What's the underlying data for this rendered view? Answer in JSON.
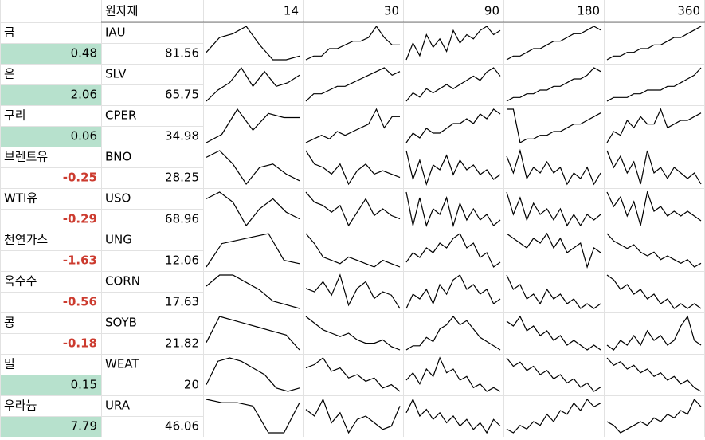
{
  "header": {
    "label": "원자재",
    "periods": [
      14,
      30,
      90,
      180,
      360
    ]
  },
  "rows": [
    {
      "name": "금",
      "ticker": "IAU",
      "change": 0.48,
      "price": 81.56,
      "sparklines": [
        [
          3,
          7,
          8,
          10,
          5,
          1,
          1,
          2
        ],
        [
          1,
          2,
          2,
          4,
          4,
          5,
          6,
          6,
          7,
          10,
          7,
          5,
          5
        ],
        [
          2,
          6,
          3,
          8,
          5,
          7,
          4,
          9,
          6,
          8,
          7,
          9,
          10,
          8,
          9
        ],
        [
          1,
          2,
          2,
          3,
          4,
          4,
          5,
          6,
          6,
          7,
          8,
          8,
          9,
          10,
          9
        ],
        [
          1,
          2,
          2,
          3,
          3,
          4,
          4,
          5,
          5,
          6,
          7,
          7,
          8,
          9,
          10
        ]
      ]
    },
    {
      "name": "은",
      "ticker": "SLV",
      "change": 2.06,
      "price": 65.75,
      "sparklines": [
        [
          1,
          4,
          6,
          10,
          5,
          9,
          5,
          6,
          8
        ],
        [
          1,
          3,
          3,
          4,
          5,
          5,
          6,
          7,
          8,
          9,
          10,
          8,
          9
        ],
        [
          2,
          4,
          3,
          5,
          4,
          5,
          6,
          5,
          6,
          7,
          8,
          7,
          9,
          10,
          8
        ],
        [
          1,
          2,
          2,
          3,
          3,
          4,
          4,
          5,
          5,
          6,
          7,
          7,
          8,
          10,
          9
        ],
        [
          1,
          2,
          2,
          2,
          3,
          3,
          4,
          4,
          4,
          5,
          5,
          6,
          7,
          8,
          10
        ]
      ]
    },
    {
      "name": "구리",
      "ticker": "CPER",
      "change": 0.06,
      "price": 34.98,
      "sparklines": [
        [
          2,
          4,
          10,
          5,
          9,
          8,
          8
        ],
        [
          1,
          2,
          3,
          2,
          4,
          3,
          4,
          5,
          6,
          10,
          5,
          8,
          8
        ],
        [
          3,
          5,
          4,
          6,
          5,
          5,
          6,
          7,
          7,
          8,
          7,
          9,
          8,
          10,
          9
        ],
        [
          9,
          9,
          0,
          1,
          1,
          2,
          2,
          3,
          3,
          4,
          5,
          5,
          6,
          7,
          8
        ],
        [
          1,
          4,
          3,
          7,
          5,
          8,
          6,
          6,
          10,
          5,
          6,
          7,
          7,
          8,
          9
        ]
      ]
    },
    {
      "name": "브렌트유",
      "ticker": "BNO",
      "change": -0.25,
      "price": 28.25,
      "sparklines": [
        [
          8,
          10,
          6,
          0,
          5,
          6,
          3,
          1
        ],
        [
          10,
          6,
          5,
          3,
          6,
          0,
          4,
          6,
          3,
          4,
          3,
          2
        ],
        [
          10,
          4,
          8,
          3,
          7,
          6,
          9,
          5,
          8,
          6,
          7,
          5,
          6,
          4,
          5
        ],
        [
          8,
          5,
          9,
          4,
          6,
          5,
          7,
          5,
          6,
          3,
          5,
          4,
          6,
          3,
          5
        ],
        [
          9,
          6,
          8,
          5,
          7,
          3,
          9,
          5,
          6,
          4,
          6,
          5,
          4,
          5,
          3
        ]
      ]
    },
    {
      "name": "WTI유",
      "ticker": "USO",
      "change": -0.29,
      "price": 68.96,
      "sparklines": [
        [
          8,
          10,
          7,
          0,
          5,
          8,
          4,
          2
        ],
        [
          10,
          7,
          6,
          4,
          6,
          0,
          4,
          8,
          3,
          5,
          3,
          2
        ],
        [
          10,
          4,
          9,
          4,
          7,
          6,
          9,
          4,
          8,
          5,
          7,
          5,
          6,
          4,
          5
        ],
        [
          9,
          5,
          8,
          4,
          7,
          5,
          6,
          4,
          6,
          3,
          5,
          3,
          5,
          4,
          5
        ],
        [
          9,
          6,
          8,
          4,
          7,
          2,
          9,
          5,
          6,
          4,
          5,
          4,
          5,
          4,
          3
        ]
      ]
    },
    {
      "name": "천연가스",
      "ticker": "UNG",
      "change": -1.63,
      "price": 12.06,
      "sparklines": [
        [
          0,
          7,
          8,
          9,
          10,
          2,
          1
        ],
        [
          10,
          7,
          3,
          2,
          1,
          3,
          2,
          1,
          0,
          2,
          1,
          0
        ],
        [
          4,
          6,
          5,
          7,
          6,
          8,
          7,
          9,
          10,
          7,
          8,
          5,
          6,
          3,
          4
        ],
        [
          7,
          6,
          5,
          4,
          6,
          5,
          7,
          4,
          6,
          3,
          4,
          5,
          0,
          4,
          3
        ],
        [
          10,
          8,
          7,
          6,
          7,
          5,
          4,
          5,
          3,
          4,
          3,
          2,
          3,
          1,
          2
        ]
      ]
    },
    {
      "name": "옥수수",
      "ticker": "CORN",
      "change": -0.56,
      "price": 17.63,
      "sparklines": [
        [
          7,
          10,
          10,
          8,
          6,
          3,
          2,
          1
        ],
        [
          6,
          5,
          8,
          4,
          10,
          1,
          6,
          8,
          3,
          5,
          4,
          0
        ],
        [
          3,
          6,
          5,
          7,
          4,
          8,
          6,
          9,
          10,
          7,
          8,
          6,
          7,
          4,
          5
        ],
        [
          10,
          7,
          8,
          5,
          6,
          4,
          7,
          5,
          6,
          4,
          5,
          3,
          4,
          3,
          4
        ],
        [
          10,
          9,
          7,
          8,
          6,
          7,
          5,
          6,
          4,
          5,
          3,
          4,
          3,
          4,
          3
        ]
      ]
    },
    {
      "name": "콩",
      "ticker": "SOYB",
      "change": -0.18,
      "price": 21.82,
      "sparklines": [
        [
          3,
          10,
          9,
          8,
          7,
          6,
          5,
          1
        ],
        [
          10,
          8,
          6,
          5,
          4,
          5,
          3,
          2,
          2,
          3,
          1,
          0
        ],
        [
          2,
          3,
          3,
          5,
          4,
          7,
          8,
          10,
          8,
          9,
          7,
          5,
          4,
          3,
          2
        ],
        [
          8,
          7,
          9,
          6,
          7,
          5,
          6,
          4,
          5,
          3,
          4,
          3,
          2,
          3,
          2
        ],
        [
          4,
          3,
          5,
          4,
          6,
          4,
          7,
          5,
          6,
          4,
          5,
          8,
          10,
          5,
          4
        ]
      ]
    },
    {
      "name": "밀",
      "ticker": "WEAT",
      "change": 0.15,
      "price": 20,
      "sparklines": [
        [
          2,
          9,
          10,
          9,
          7,
          5,
          1,
          0,
          1
        ],
        [
          7,
          8,
          10,
          6,
          7,
          4,
          5,
          3,
          4,
          1,
          2,
          0
        ],
        [
          4,
          6,
          3,
          7,
          5,
          10,
          6,
          7,
          4,
          5,
          2,
          3,
          1,
          2,
          1
        ],
        [
          9,
          7,
          8,
          6,
          7,
          5,
          6,
          4,
          5,
          3,
          4,
          2,
          3,
          1,
          2
        ],
        [
          10,
          8,
          9,
          7,
          8,
          6,
          7,
          5,
          6,
          4,
          5,
          3,
          4,
          2,
          1
        ]
      ]
    },
    {
      "name": "우라늄",
      "ticker": "URA",
      "change": 7.79,
      "price": 46.06,
      "sparklines": [
        [
          10,
          9,
          9,
          8,
          0,
          0,
          9
        ],
        [
          7,
          5,
          10,
          3,
          6,
          0,
          4,
          5,
          3,
          1,
          2,
          8
        ],
        [
          6,
          10,
          5,
          7,
          4,
          6,
          3,
          5,
          2,
          4,
          1,
          3,
          0,
          4,
          2
        ],
        [
          2,
          1,
          3,
          2,
          4,
          3,
          6,
          4,
          7,
          6,
          9,
          7,
          10,
          8,
          9
        ],
        [
          4,
          3,
          1,
          2,
          3,
          4,
          3,
          5,
          4,
          6,
          5,
          7,
          6,
          10,
          8
        ]
      ]
    }
  ]
}
